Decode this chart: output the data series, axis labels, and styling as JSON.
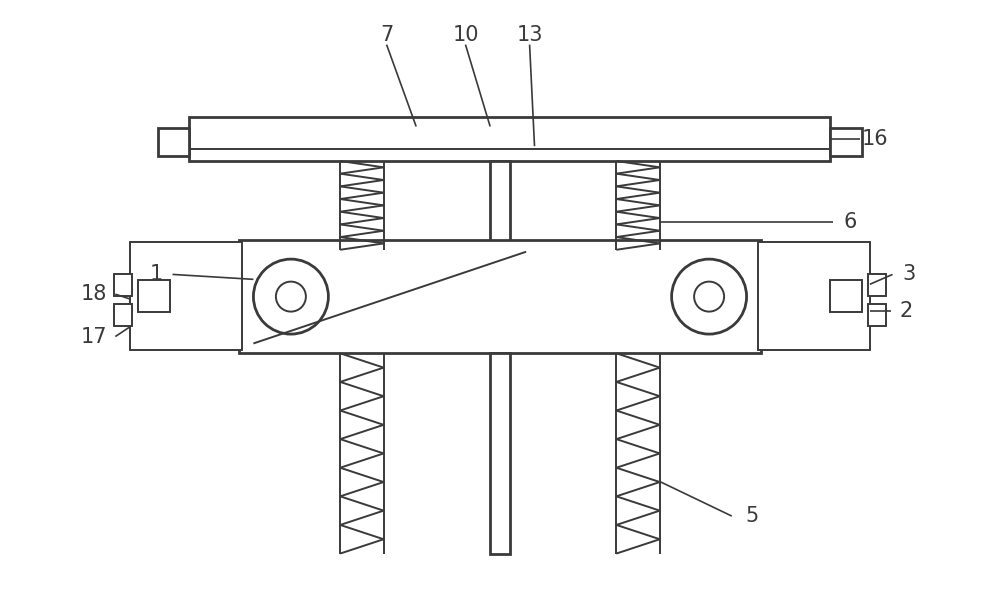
{
  "background_color": "#ffffff",
  "line_color": "#3a3a3a",
  "line_width": 1.4,
  "fig_width": 10.0,
  "fig_height": 6.09,
  "label_fontsize": 15,
  "label_color": "#2a2a2a"
}
